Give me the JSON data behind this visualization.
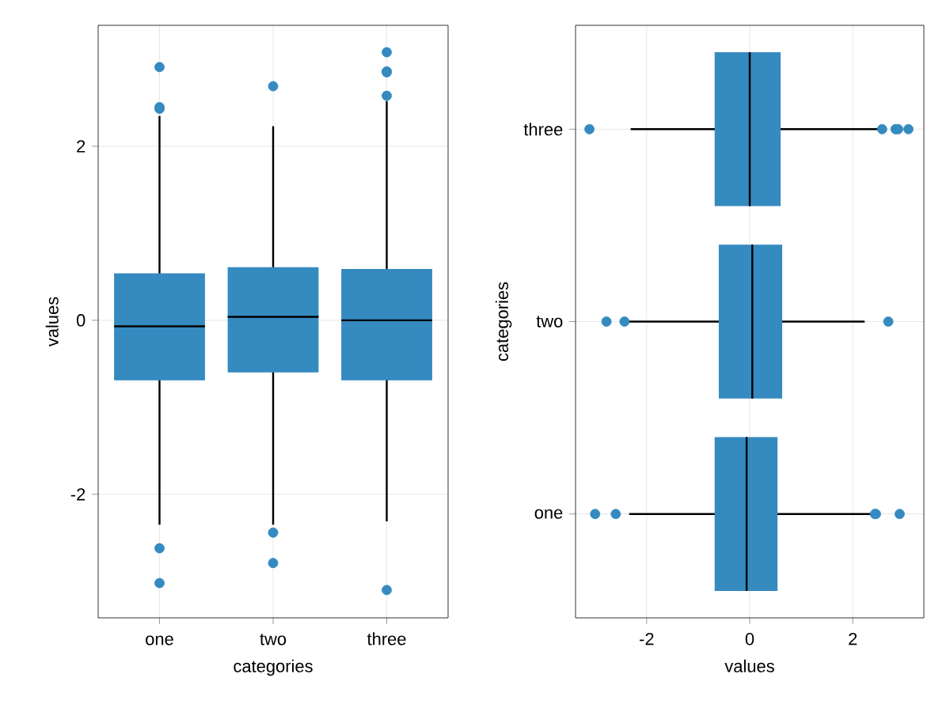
{
  "chart_data": [
    {
      "type": "box",
      "categories": [
        "one",
        "two",
        "three"
      ],
      "color": "#358ac0",
      "xlabel": "categories",
      "ylabel": "values",
      "ylim": [
        -3.42,
        3.39
      ],
      "yticks": [
        -2,
        0,
        2
      ],
      "grid": true,
      "boxes": [
        {
          "low": -2.35,
          "q1": -0.69,
          "median": -0.07,
          "q3": 0.54,
          "high": 2.35,
          "outliers": [
            2.91,
            2.45,
            2.43,
            -2.62,
            -3.02
          ]
        },
        {
          "low": -2.35,
          "q1": -0.6,
          "median": 0.04,
          "q3": 0.61,
          "high": 2.23,
          "outliers": [
            2.69,
            -2.44,
            -2.79
          ]
        },
        {
          "low": -2.31,
          "q1": -0.69,
          "median": 0.0,
          "q3": 0.59,
          "high": 2.52,
          "outliers": [
            3.08,
            2.86,
            2.85,
            2.58,
            -3.1
          ]
        }
      ]
    },
    {
      "type": "box",
      "orientation": "horizontal",
      "categories": [
        "three",
        "two",
        "one"
      ],
      "color": "#358ac0",
      "xlabel": "values",
      "ylabel": "categories",
      "xlim": [
        -3.38,
        3.38
      ],
      "xticks": [
        -2,
        0,
        2
      ],
      "grid": true,
      "boxes": [
        {
          "low": -2.31,
          "q1": -0.68,
          "median": 0.0,
          "q3": 0.6,
          "high": 2.52,
          "outliers": [
            -3.11,
            2.57,
            2.83,
            2.88,
            3.08
          ]
        },
        {
          "low": -2.35,
          "q1": -0.6,
          "median": 0.05,
          "q3": 0.63,
          "high": 2.23,
          "outliers": [
            -2.78,
            -2.43,
            2.69
          ]
        },
        {
          "low": -2.34,
          "q1": -0.68,
          "median": -0.06,
          "q3": 0.54,
          "high": 2.35,
          "outliers": [
            -3.0,
            -2.6,
            2.43,
            2.45,
            2.91
          ]
        }
      ]
    }
  ]
}
